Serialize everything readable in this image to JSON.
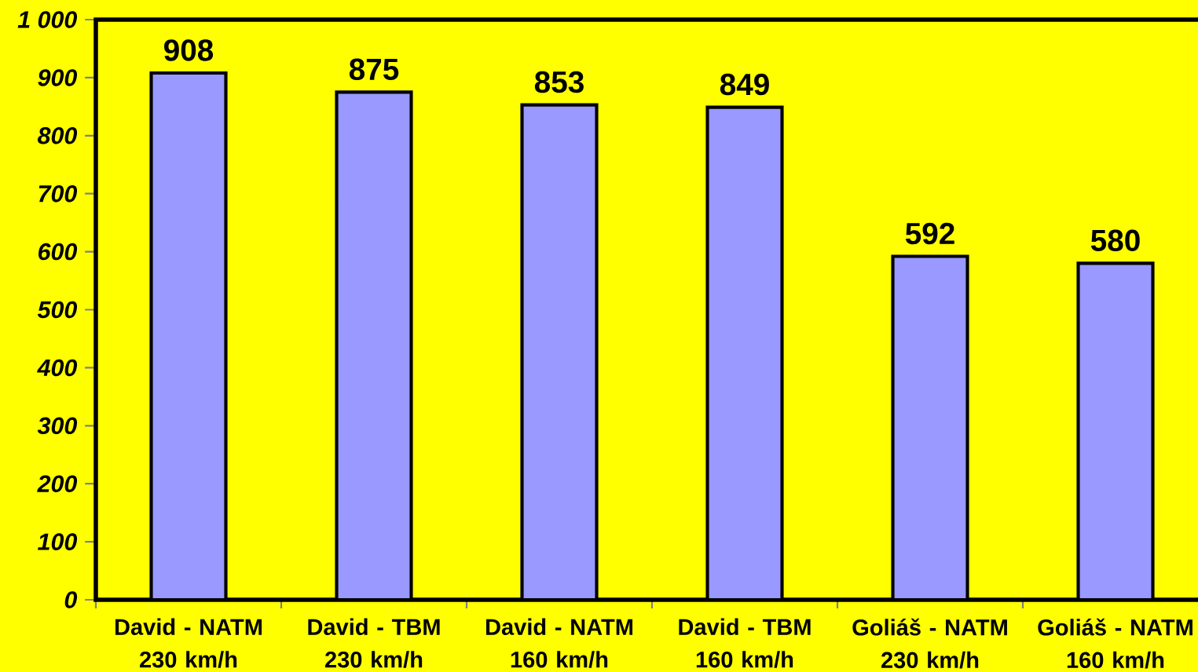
{
  "chart_data": {
    "type": "bar",
    "categories": [
      "David - NATM 230 km/h",
      "David - TBM 230 km/h",
      "David - NATM 160 km/h",
      "David - TBM 160 km/h",
      "Goliáš - NATM 230 km/h",
      "Goliáš - NATM 160 km/h"
    ],
    "values": [
      908,
      875,
      853,
      849,
      592,
      580
    ],
    "color": "#9999ff",
    "ylim": [
      0,
      1000
    ],
    "yticks": [
      0,
      100,
      200,
      300,
      400,
      500,
      600,
      700,
      800,
      900,
      {
        "value": 1000,
        "label": "1 000"
      }
    ],
    "data_labels": true
  }
}
